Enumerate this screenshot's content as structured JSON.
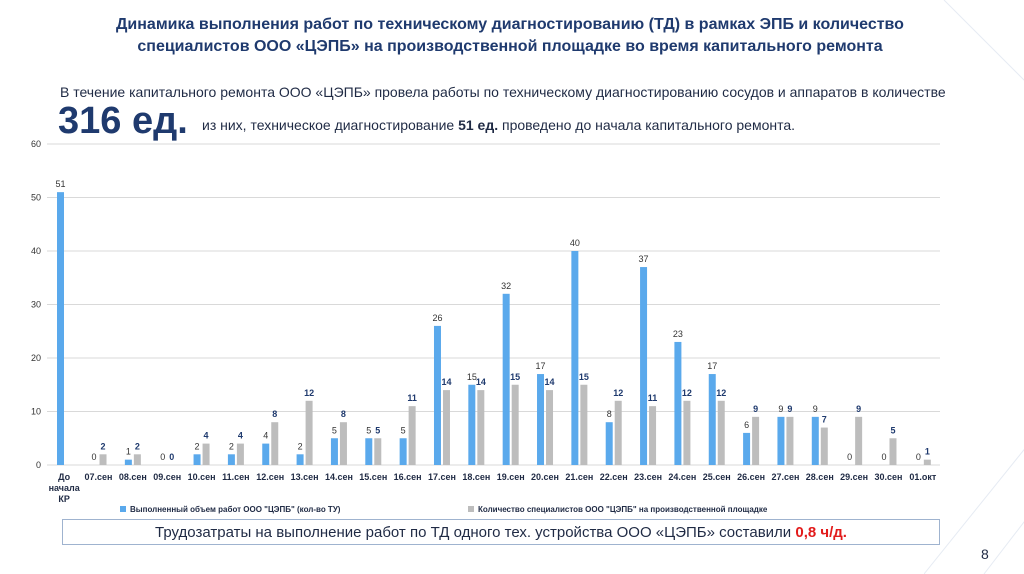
{
  "slide": {
    "title_line1": "Динамика выполнения работ по техническому  диагностированию (ТД) в рамках ЭПБ и количество",
    "title_line2": "специалистов ООО «ЦЭПБ» на производственной площадке во время капитального ремонта",
    "intro": "В течение капитального ремонта ООО «ЦЭПБ» провела работы по техническому диагностированию  сосудов и аппаратов в количестве",
    "big_value": "316 ед.",
    "sub_prefix": "из них, техническое диагностирование ",
    "sub_bold": "51 ед.",
    "sub_suffix": " проведено до начала капитального ремонта.",
    "note_prefix": "Трудозатраты на выполнение работ по ТД одного тех. устройства ООО «ЦЭПБ» составили ",
    "note_value": "0,8 ч/д.",
    "page_number": "8"
  },
  "chart_data": {
    "type": "bar",
    "categories": [
      "До начала КР",
      "07.сен",
      "08.сен",
      "09.сен",
      "10.сен",
      "11.сен",
      "12.сен",
      "13.сен",
      "14.сен",
      "15.сен",
      "16.сен",
      "17.сен",
      "18.сен",
      "19.сен",
      "20.сен",
      "21.сен",
      "22.сен",
      "23.сен",
      "24.сен",
      "25.сен",
      "26.сен",
      "27.сен",
      "28.сен",
      "29.сен",
      "30.сен",
      "01.окт"
    ],
    "series": [
      {
        "name": "Выполненный объем работ ООО \"ЦЭПБ\" (кол-во ТУ)",
        "color": "#5aa9ec",
        "values": [
          51,
          0,
          1,
          0,
          2,
          2,
          4,
          2,
          5,
          5,
          5,
          26,
          15,
          32,
          17,
          40,
          8,
          37,
          23,
          17,
          6,
          9,
          9,
          0,
          0,
          0
        ]
      },
      {
        "name": "Количество специалистов ООО \"ЦЭПБ\" на производственной площадке",
        "color": "#bdbdbd",
        "values": [
          null,
          2,
          2,
          0,
          4,
          4,
          8,
          12,
          8,
          5,
          11,
          14,
          14,
          15,
          14,
          15,
          12,
          11,
          12,
          12,
          9,
          9,
          7,
          9,
          5,
          1
        ]
      }
    ],
    "ylim": [
      0,
      60
    ],
    "yticks": [
      0,
      10,
      20,
      30,
      40,
      50,
      60
    ],
    "grid": true,
    "legend": "bottom"
  }
}
